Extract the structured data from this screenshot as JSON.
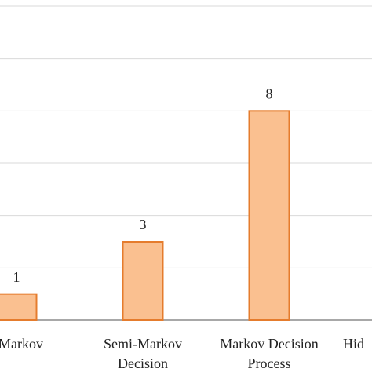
{
  "chart_data": {
    "type": "bar",
    "categories": [
      [
        "i-Markov"
      ],
      [
        "Semi-Markov",
        "Decision"
      ],
      [
        "Markov Decision",
        "Process"
      ],
      [
        "Hid"
      ]
    ],
    "values": [
      1,
      3,
      8,
      null
    ],
    "color": "#fac090",
    "edge_color": "#e57c2d",
    "ylim": [
      0,
      12
    ],
    "yticks": [
      0,
      2,
      4,
      6,
      8,
      10,
      12
    ],
    "grid": true
  }
}
